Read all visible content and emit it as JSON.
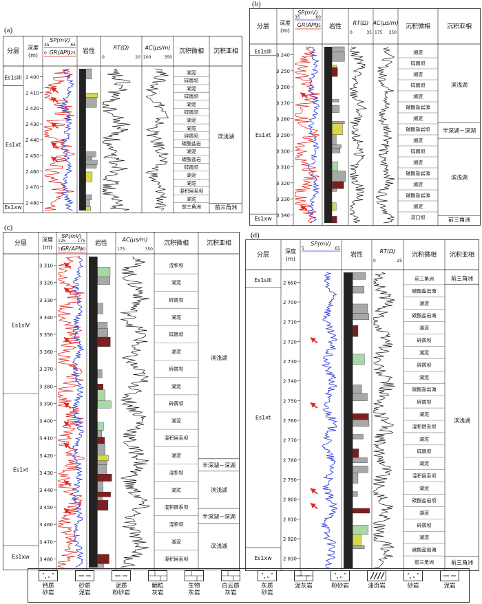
{
  "panels": [
    {
      "id": "a",
      "label": "(a)",
      "header": {
        "strat": "分层",
        "depth": "深度\n(m)",
        "sp": "SP(mV)",
        "sp_range": [
          "35",
          "65"
        ],
        "gr": "GR(API)",
        "gr_range": [
          "0",
          "125"
        ],
        "lith": "岩性",
        "rt": "RT(Ω)",
        "rt_range": [
          "0",
          "20"
        ],
        "ac": "AC(μs/m)",
        "ac_range": [
          "200",
          "350"
        ],
        "micro": "沉积微相",
        "sub": "沉积亚相"
      },
      "depth_ticks": [
        "2 400",
        "2 410",
        "2 420",
        "2 430",
        "2 440",
        "2 450",
        "2 460",
        "2 470",
        "2 480"
      ],
      "strata": [
        "Es1sIII",
        "Es1xt",
        "Es1xw"
      ],
      "micro": [
        "湖泥",
        "碎屑坝",
        "湖泥",
        "碎屑坝",
        "湖泥",
        "碎屑坝",
        "湖泥",
        "湖泥",
        "碎屑坝",
        "碳酸盐岩",
        "湖泥",
        "碳酸盐岩",
        "碎屑坝",
        "湖泥",
        "湖泥",
        "混积层系坝",
        "湖泥",
        "前三角洲"
      ],
      "sub": [
        "滨浅湖",
        "前三角洲"
      ]
    },
    {
      "id": "b",
      "label": "(b)",
      "header": {
        "strat": "分层",
        "depth": "深度\n(m)",
        "sp": "SP(mV)",
        "sp_range": [
          "35",
          "60"
        ],
        "gr": "GR(API)",
        "gr_range": [
          "",
          "15"
        ],
        "lith": "岩性",
        "rt": "RT(Ω)",
        "rt_range": [
          "0",
          "35"
        ],
        "ac": "AC(μs/m)",
        "ac_range": [
          "175",
          "350"
        ],
        "micro": "沉积微相",
        "sub": "沉积亚相"
      },
      "depth_ticks": [
        "3 240",
        "3 250",
        "3 260",
        "3 270",
        "3 280",
        "3 290",
        "3 300",
        "3 310",
        "3 320",
        "3 330",
        "3 340"
      ],
      "strata": [
        "Es1sIII",
        "Es1xt",
        "Es1xw"
      ],
      "micro": [
        "湖泥",
        "碎屑坝",
        "湖泥",
        "碎屑坝",
        "湖泥",
        "碳酸盐岩滩",
        "湖泥",
        "碳酸盐岩坝",
        "湖泥",
        "碎屑坝",
        "湖泥",
        "碳酸盐岩滩",
        "湖泥",
        "碳酸盐岩滩",
        "湖泥",
        "河口坝"
      ],
      "sub": [
        "滨浅湖",
        "半深湖－深湖",
        "滨浅湖",
        "前三角洲"
      ]
    },
    {
      "id": "c",
      "label": "(c)",
      "header": {
        "strat": "分层",
        "depth": "深度\n(m)",
        "sp": "SP(mV)",
        "sp_range": [
          "125",
          "175"
        ],
        "gr": "GR(API)",
        "gr_range": [
          "15",
          "90"
        ],
        "lith": "岩性",
        "ac": "AC(μs/m)",
        "ac_range": [
          "175",
          "350"
        ],
        "micro": "沉积微相",
        "sub": "沉积亚相"
      },
      "depth_ticks": [
        "3 310",
        "3 320",
        "3 330",
        "3 340",
        "3 350",
        "3 360",
        "3 370",
        "3 380",
        "3 390",
        "3 400",
        "3 410",
        "3 420",
        "3 430",
        "3 440",
        "3 450",
        "3 460",
        "3 470",
        "3 480"
      ],
      "strata": [
        "Es1sIV",
        "Es1xt",
        "Es1xw"
      ],
      "micro": [
        "混积坝",
        "湖泥",
        "碎屑坝",
        "湖泥",
        "碎屑坝",
        "湖泥",
        "碎屑坝",
        "湖泥",
        "碎屑坝",
        "湖泥",
        "混积层系坝",
        "湖泥",
        "混积坝",
        "湖泥",
        "混积层系坝",
        "混积坝",
        "湖泥",
        "混积层系坝"
      ],
      "sub": [
        "滨浅湖",
        "半深湖－深湖",
        "滨浅湖",
        "半深湖－深湖",
        "滨浅湖"
      ]
    },
    {
      "id": "d",
      "label": "(d)",
      "header": {
        "strat": "分层",
        "depth": "深度\n(m)",
        "sp": "SP(mV)",
        "sp_range": [
          "5",
          "65"
        ],
        "lith": "岩性",
        "rt": "RT(Ω)",
        "rt_range": [
          "0",
          "25"
        ],
        "micro": "沉积微相",
        "sub": "沉积亚相"
      },
      "depth_ticks": [
        "2 690",
        "2 700",
        "2 710",
        "2 720",
        "2 730",
        "2 740",
        "2 750",
        "2 760",
        "2 770",
        "2 780",
        "2 790",
        "2 800",
        "2 810",
        "2 820",
        "2 830"
      ],
      "strata": [
        "Es1sIII",
        "Es1xt",
        "Es1xw"
      ],
      "micro": [
        "前三角洲",
        "碳酸盐岩滩",
        "湖泥",
        "碳酸盐岩滩",
        "湖泥",
        "碎屑坝",
        "湖泥",
        "碎屑坝",
        "湖泥",
        "碳酸盐岩滩",
        "碎屑坝",
        "湖泥",
        "混积层系坝",
        "湖泥",
        "碎屑坝",
        "湖泥",
        "混积层系坝",
        "湖泥",
        "碳酸盐岩坝",
        "湖泥",
        "碎屑坝",
        "湖泥",
        "碳酸盐岩滩",
        "前三角洲"
      ],
      "sub": [
        "前三角洲",
        "滨浅湖",
        "前三角洲"
      ]
    }
  ],
  "legend": [
    {
      "label": "钙质\n砂岩",
      "pattern": "dots"
    },
    {
      "label": "砂质\n泥岩",
      "pattern": "dashdot"
    },
    {
      "label": "泥质\n粉砂岩",
      "pattern": "dashdot2"
    },
    {
      "label": "鲕粒\n灰岩",
      "pattern": "brick"
    },
    {
      "label": "生物\n灰岩",
      "pattern": "brick2"
    },
    {
      "label": "白云质\n灰岩",
      "pattern": "brick3"
    },
    {
      "label": "灰质\n砂岩",
      "pattern": "dots2"
    },
    {
      "label": "泥灰岩",
      "pattern": "brickdash"
    },
    {
      "label": "粉砂岩",
      "pattern": "dot1"
    },
    {
      "label": "油页岩",
      "pattern": "shale"
    },
    {
      "label": "砂岩",
      "pattern": "dots3"
    },
    {
      "label": "泥岩",
      "pattern": "dash"
    }
  ],
  "colors": {
    "sp": "#2b3fd6",
    "gr": "#e0281e",
    "arrow": "#e0281e",
    "mud": "#7b1f1f",
    "sand": "#a8a8a8",
    "dark": "#222222",
    "yellow": "#d8d84a",
    "green": "#a8d8a8"
  }
}
